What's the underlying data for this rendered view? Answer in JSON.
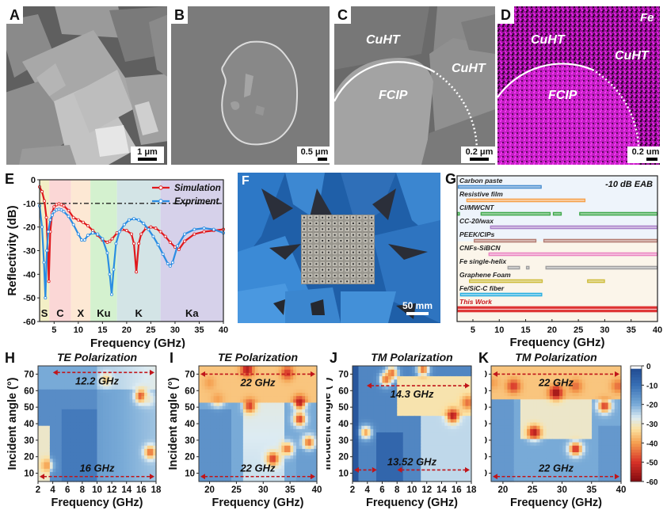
{
  "panels": {
    "A": {
      "label": "A",
      "scale": "1 μm"
    },
    "B": {
      "label": "B",
      "scale": "0.5 μm"
    },
    "C": {
      "label": "C",
      "scale": "0.2 μm",
      "annotations": [
        "CuHT",
        "CuHT",
        "FCIP"
      ]
    },
    "D": {
      "label": "D",
      "scale": "0.2 um",
      "annotations": [
        "CuHT",
        "CuHT",
        "FCIP",
        "Fe"
      ]
    },
    "E": {
      "label": "E"
    },
    "F": {
      "label": "F",
      "scale": "50 mm"
    },
    "G": {
      "label": "G"
    },
    "H": {
      "label": "H"
    },
    "I": {
      "label": "I"
    },
    "J": {
      "label": "J"
    },
    "K": {
      "label": "K"
    }
  },
  "chart_data": [
    {
      "id": "E",
      "type": "line",
      "title": "",
      "xlabel": "Frequency (GHz)",
      "ylabel": "Reflectivity (dB)",
      "xlim": [
        2,
        40
      ],
      "ylim": [
        -60,
        0
      ],
      "xticks": [
        5,
        10,
        15,
        20,
        25,
        30,
        35,
        40
      ],
      "yticks": [
        0,
        -10,
        -20,
        -30,
        -40,
        -50,
        -60
      ],
      "threshold": -10,
      "legend": "top-right",
      "bands": [
        {
          "name": "S",
          "from": 2,
          "to": 4,
          "color": "#f3efc6"
        },
        {
          "name": "C",
          "from": 4,
          "to": 8.5,
          "color": "#fbd7d6"
        },
        {
          "name": "X",
          "from": 8.5,
          "to": 12.5,
          "color": "#fde8d4"
        },
        {
          "name": "Ku",
          "from": 12.5,
          "to": 18,
          "color": "#d4f1cf"
        },
        {
          "name": "K",
          "from": 18,
          "to": 27,
          "color": "#d3e4e6"
        },
        {
          "name": "Ka",
          "from": 27,
          "to": 40,
          "color": "#d6d1ea"
        }
      ],
      "series": [
        {
          "name": "Simulation",
          "color": "#e0191d",
          "x": [
            2,
            2.5,
            3,
            3.4,
            3.7,
            3.9,
            4.2,
            4.6,
            5,
            5.5,
            6,
            6.5,
            7,
            8,
            9,
            10,
            11,
            12,
            13,
            14,
            15,
            16,
            16.5,
            17,
            18,
            19,
            20,
            21,
            21.5,
            22,
            22.5,
            23,
            24,
            25,
            26,
            27,
            28,
            29,
            30,
            30.8,
            32,
            34,
            36,
            38,
            40
          ],
          "y": [
            -3,
            -5,
            -9,
            -16,
            -30,
            -43,
            -22,
            -14,
            -11.5,
            -10.5,
            -10.2,
            -10.5,
            -11,
            -13,
            -16,
            -17,
            -18,
            -19.5,
            -21.5,
            -23.5,
            -25.5,
            -26.5,
            -26,
            -25,
            -22.5,
            -21,
            -21.5,
            -23,
            -27,
            -39,
            -27,
            -23,
            -20.5,
            -20,
            -20.5,
            -22,
            -24,
            -26.5,
            -28.5,
            -29.5,
            -26,
            -23,
            -22,
            -21.5,
            -21
          ]
        },
        {
          "name": "Expriment",
          "color": "#2b8de3",
          "x": [
            2,
            2.5,
            2.9,
            3.2,
            3.5,
            3.8,
            4.2,
            4.6,
            5,
            5.5,
            6,
            6.5,
            7,
            8,
            9,
            10,
            10.7,
            11.3,
            12,
            13,
            14,
            15,
            16,
            16.5,
            16.9,
            17.3,
            17.8,
            18.5,
            19.5,
            20.5,
            21.5,
            22.5,
            23.5,
            24.5,
            25.5,
            26.5,
            27.5,
            28.5,
            29,
            29.5,
            30.5,
            32,
            34,
            36,
            38,
            40
          ],
          "y": [
            -11,
            -20,
            -35,
            -50,
            -30,
            -22,
            -17,
            -15,
            -13.5,
            -12.8,
            -12.5,
            -12.8,
            -13.5,
            -15.5,
            -19,
            -23,
            -25.5,
            -25.5,
            -23.5,
            -22.5,
            -23,
            -25,
            -31,
            -40,
            -48.5,
            -38,
            -27,
            -22,
            -19,
            -17,
            -16.5,
            -17,
            -18.5,
            -21,
            -24,
            -27.5,
            -31.5,
            -35.5,
            -36.5,
            -35,
            -28,
            -23,
            -21,
            -20.5,
            -21,
            -22.5
          ]
        }
      ]
    },
    {
      "id": "G",
      "type": "bar",
      "subtype": "range",
      "title": "-10 dB EAB",
      "xlabel": "Frequency (GHz)",
      "xlim": [
        2,
        40
      ],
      "xticks": [
        5,
        10,
        15,
        20,
        25,
        30,
        35,
        40
      ],
      "rows": [
        {
          "name": "Carbon paste",
          "color": "#4b8fd0",
          "ranges": [
            [
              2.2,
              18
            ]
          ]
        },
        {
          "name": "Resistive film",
          "color": "#f5a04a",
          "ranges": [
            [
              3.8,
              26.3
            ]
          ]
        },
        {
          "name": "CI/MWCNT",
          "color": "#3fa84a",
          "ranges": [
            [
              2,
              2.5
            ],
            [
              6.5,
              19.7
            ],
            [
              20.2,
              21.8
            ],
            [
              25.2,
              40
            ]
          ]
        },
        {
          "name": "CC-20/wax",
          "color": "#a97fc8",
          "ranges": [
            [
              8.3,
              40
            ]
          ]
        },
        {
          "name": "PEEK/CIPs",
          "color": "#b37b70",
          "ranges": [
            [
              5.2,
              17
            ],
            [
              18.4,
              40
            ]
          ]
        },
        {
          "name": "CNFs-SiBCN",
          "color": "#ea83c0",
          "ranges": [
            [
              8,
              40
            ]
          ]
        },
        {
          "name": "Fe single-helix",
          "color": "#9e9e9e",
          "ranges": [
            [
              11.6,
              13.9
            ],
            [
              15.1,
              15.7
            ],
            [
              18.8,
              40
            ]
          ]
        },
        {
          "name": "Graphene Foam",
          "color": "#cdbb3a",
          "ranges": [
            [
              4.3,
              18.2
            ],
            [
              26.7,
              30
            ]
          ]
        },
        {
          "name": "Fe/SiC-C fiber",
          "color": "#28aee0",
          "ranges": [
            [
              2.6,
              18.1
            ]
          ]
        },
        {
          "name": "This Work",
          "color": "#de3434",
          "ranges": [
            [
              2,
              40
            ]
          ],
          "highlight": true
        }
      ]
    },
    {
      "id": "H",
      "type": "heatmap",
      "title": "TE Polarization",
      "xlabel": "Frequency (GHz)",
      "ylabel": "Incident angle (°)",
      "xlim": [
        2,
        18
      ],
      "ylim": [
        5,
        75
      ],
      "xticks": [
        2,
        4,
        6,
        8,
        10,
        12,
        14,
        16,
        18
      ],
      "yticks": [
        10,
        20,
        30,
        40,
        50,
        60,
        70
      ],
      "annotations": [
        {
          "text": "12.2 GHz",
          "angle": 71,
          "from": 3.8,
          "to": 18
        },
        {
          "text": "16 GHz",
          "angle": 8,
          "from": 2,
          "to": 18
        }
      ],
      "hotspots": [
        [
          16,
          57,
          -50
        ],
        [
          17.2,
          23,
          -45
        ],
        [
          11.2,
          67,
          -35
        ],
        [
          3.2,
          15,
          -40
        ],
        [
          17,
          55,
          -30
        ]
      ]
    },
    {
      "id": "I",
      "type": "heatmap",
      "title": "TE Polarization",
      "xlabel": "Frequency (GHz)",
      "ylabel": "Incident angle (°)",
      "xlim": [
        18,
        40
      ],
      "ylim": [
        5,
        75
      ],
      "xticks": [
        20,
        25,
        30,
        35,
        40
      ],
      "yticks": [
        10,
        20,
        30,
        40,
        50,
        60,
        70
      ],
      "annotations": [
        {
          "text": "22 GHz",
          "angle": 70,
          "from": 18,
          "to": 40
        },
        {
          "text": "22 GHz",
          "angle": 8,
          "from": 18,
          "to": 40
        }
      ],
      "hotspots": [
        [
          27,
          73,
          -55
        ],
        [
          34.5,
          71,
          -50
        ],
        [
          36.8,
          53,
          -55
        ],
        [
          27.5,
          51,
          -50
        ],
        [
          36.8,
          43,
          -50
        ],
        [
          34.5,
          25,
          -45
        ],
        [
          31.8,
          19,
          -50
        ],
        [
          38.5,
          29,
          -45
        ],
        [
          21.5,
          55,
          -40
        ],
        [
          20,
          65,
          -40
        ]
      ]
    },
    {
      "id": "J",
      "type": "heatmap",
      "title": "TM Polarization",
      "xlabel": "Frequency (GHz)",
      "ylabel": "Incident angle (°)",
      "xlim": [
        2,
        18
      ],
      "ylim": [
        5,
        75
      ],
      "xticks": [
        2,
        4,
        6,
        8,
        10,
        12,
        14,
        16,
        18
      ],
      "yticks": [
        10,
        20,
        30,
        40,
        50,
        60,
        70
      ],
      "annotations": [
        {
          "text": "14.3 GHz",
          "angle": 63,
          "from": 3.7,
          "to": 18
        },
        {
          "text": "13.52 GHz",
          "angle": 12,
          "from": 2,
          "to": 18,
          "gap": [
            5.5,
            7.8
          ]
        }
      ],
      "hotspots": [
        [
          15.5,
          45,
          -55
        ],
        [
          6.5,
          67,
          -45
        ],
        [
          7.3,
          71,
          -45
        ],
        [
          11.5,
          73,
          -45
        ],
        [
          17.5,
          53,
          -45
        ],
        [
          3.8,
          35,
          -40
        ]
      ]
    },
    {
      "id": "K",
      "type": "heatmap",
      "title": "TM Polarization",
      "xlabel": "Frequency (GHz)",
      "ylabel": "Incident angle (°)",
      "xlim": [
        18,
        40
      ],
      "ylim": [
        5,
        75
      ],
      "xticks": [
        20,
        25,
        30,
        35,
        40
      ],
      "yticks": [
        10,
        20,
        30,
        40,
        50,
        60,
        70
      ],
      "annotations": [
        {
          "text": "22 GHz",
          "angle": 70,
          "from": 18,
          "to": 40
        },
        {
          "text": "22 GHz",
          "angle": 8,
          "from": 18,
          "to": 40
        }
      ],
      "colorbar": {
        "min": -60,
        "max": 0,
        "ticks": [
          0,
          -10,
          -20,
          -30,
          -40,
          -50,
          -60
        ]
      },
      "hotspots": [
        [
          29,
          59,
          -58
        ],
        [
          21.8,
          63,
          -50
        ],
        [
          25.3,
          35,
          -55
        ],
        [
          32.3,
          25,
          -52
        ],
        [
          37.2,
          51,
          -50
        ],
        [
          32.3,
          63,
          -45
        ],
        [
          39.5,
          63,
          -45
        ],
        [
          18.3,
          65,
          -40
        ]
      ]
    }
  ]
}
